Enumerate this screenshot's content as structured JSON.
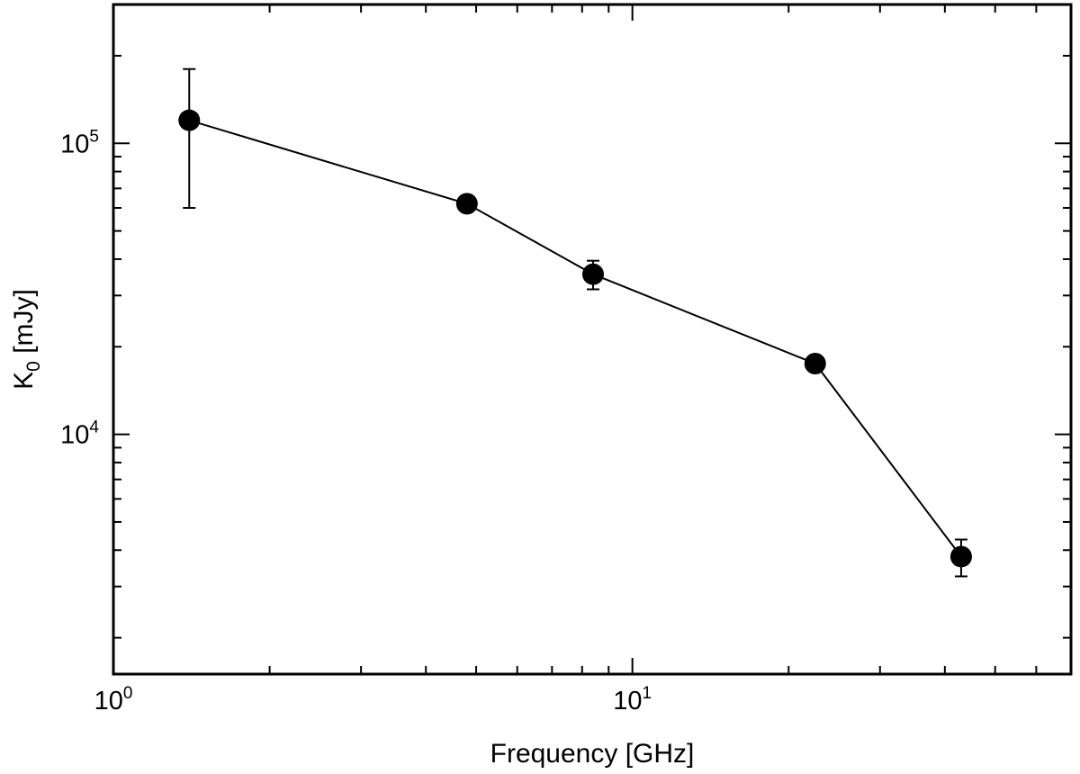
{
  "chart_data": {
    "type": "line",
    "xlabel": "Frequency [GHz]",
    "ylabel": {
      "symbol": "K",
      "subscript": "0",
      "unit": " [mJy]"
    },
    "x_scale": "log",
    "y_scale": "log",
    "xlim": [
      1,
      70
    ],
    "ylim": [
      1500,
      300000
    ],
    "x_major_ticks": [
      {
        "value": 1,
        "base": "10",
        "exp": "0"
      },
      {
        "value": 10,
        "base": "10",
        "exp": "1"
      }
    ],
    "y_major_ticks": [
      {
        "value": 10000,
        "base": "10",
        "exp": "4"
      },
      {
        "value": 100000,
        "base": "10",
        "exp": "5"
      }
    ],
    "grid": false,
    "legend": "none",
    "marker": "filled-circle",
    "color": "#000000",
    "series": [
      {
        "points": [
          {
            "x": 1.4,
            "y": 120000,
            "err_low": 60000,
            "err_high": 180000
          },
          {
            "x": 4.8,
            "y": 62000,
            "err_low": null,
            "err_high": null
          },
          {
            "x": 8.4,
            "y": 35500,
            "err_low": 31500,
            "err_high": 39500
          },
          {
            "x": 22.5,
            "y": 17500,
            "err_low": null,
            "err_high": null
          },
          {
            "x": 43,
            "y": 3800,
            "err_low": 3250,
            "err_high": 4350
          }
        ]
      }
    ]
  }
}
